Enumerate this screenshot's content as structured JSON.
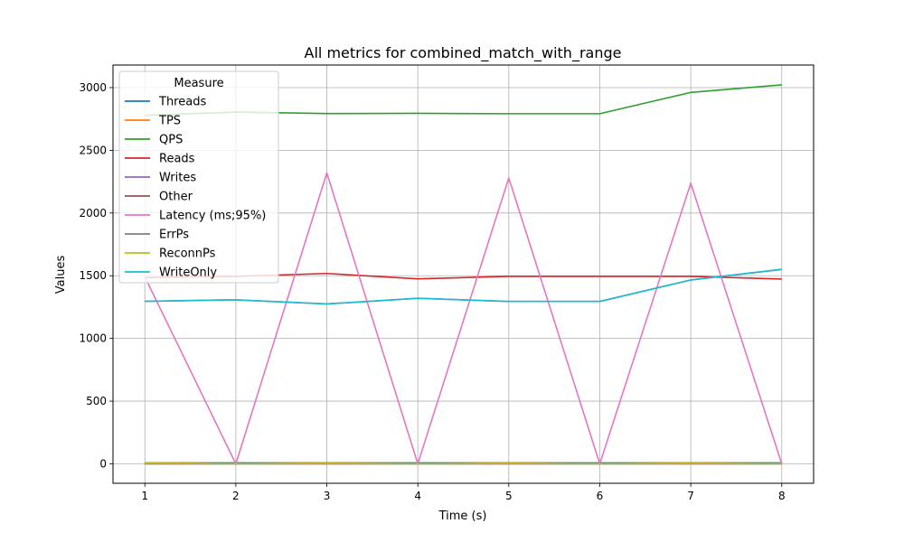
{
  "chart_data": {
    "type": "line",
    "title": "All metrics for combined_match_with_range",
    "xlabel": "Time (s)",
    "ylabel": "Values",
    "x": [
      1,
      2,
      3,
      4,
      5,
      6,
      7,
      8
    ],
    "xlim": [
      0.65,
      8.35
    ],
    "ylim": [
      -155,
      3180
    ],
    "xticks": [
      1,
      2,
      3,
      4,
      5,
      6,
      7,
      8
    ],
    "yticks": [
      0,
      500,
      1000,
      1500,
      2000,
      2500,
      3000
    ],
    "grid": true,
    "legend": {
      "title": "Measure",
      "placement": "upper-left"
    },
    "series": [
      {
        "name": "Threads",
        "color": "#1f77b4",
        "values": [
          8,
          8,
          8,
          8,
          8,
          8,
          8,
          8
        ]
      },
      {
        "name": "TPS",
        "color": "#ff7f0e",
        "values": [
          8,
          0,
          5,
          0,
          5,
          0,
          5,
          0
        ]
      },
      {
        "name": "QPS",
        "color": "#2ca02c",
        "values": [
          2780,
          2805,
          2793,
          2795,
          2792,
          2792,
          2962,
          3022
        ]
      },
      {
        "name": "Reads",
        "color": "#d62728",
        "values": [
          1485,
          1495,
          1518,
          1475,
          1495,
          1495,
          1495,
          1473
        ]
      },
      {
        "name": "Writes",
        "color": "#9467bd",
        "values": [
          1296,
          1308,
          1275,
          1320,
          1295,
          1295,
          1466,
          1550
        ]
      },
      {
        "name": "Other",
        "color": "#8c564b",
        "values": [
          0,
          0,
          0,
          0,
          0,
          0,
          0,
          0
        ]
      },
      {
        "name": "Latency (ms;95%)",
        "color": "#e377c2",
        "values": [
          1490,
          0,
          2320,
          0,
          2280,
          0,
          2238,
          0
        ]
      },
      {
        "name": "ErrPs",
        "color": "#7f7f7f",
        "values": [
          0,
          0,
          0,
          0,
          0,
          0,
          0,
          0
        ]
      },
      {
        "name": "ReconnPs",
        "color": "#bcbd22",
        "values": [
          5,
          0,
          3,
          0,
          3,
          0,
          3,
          0
        ]
      },
      {
        "name": "WriteOnly",
        "color": "#17becf",
        "values": [
          1296,
          1308,
          1275,
          1320,
          1295,
          1295,
          1466,
          1552
        ]
      }
    ]
  }
}
